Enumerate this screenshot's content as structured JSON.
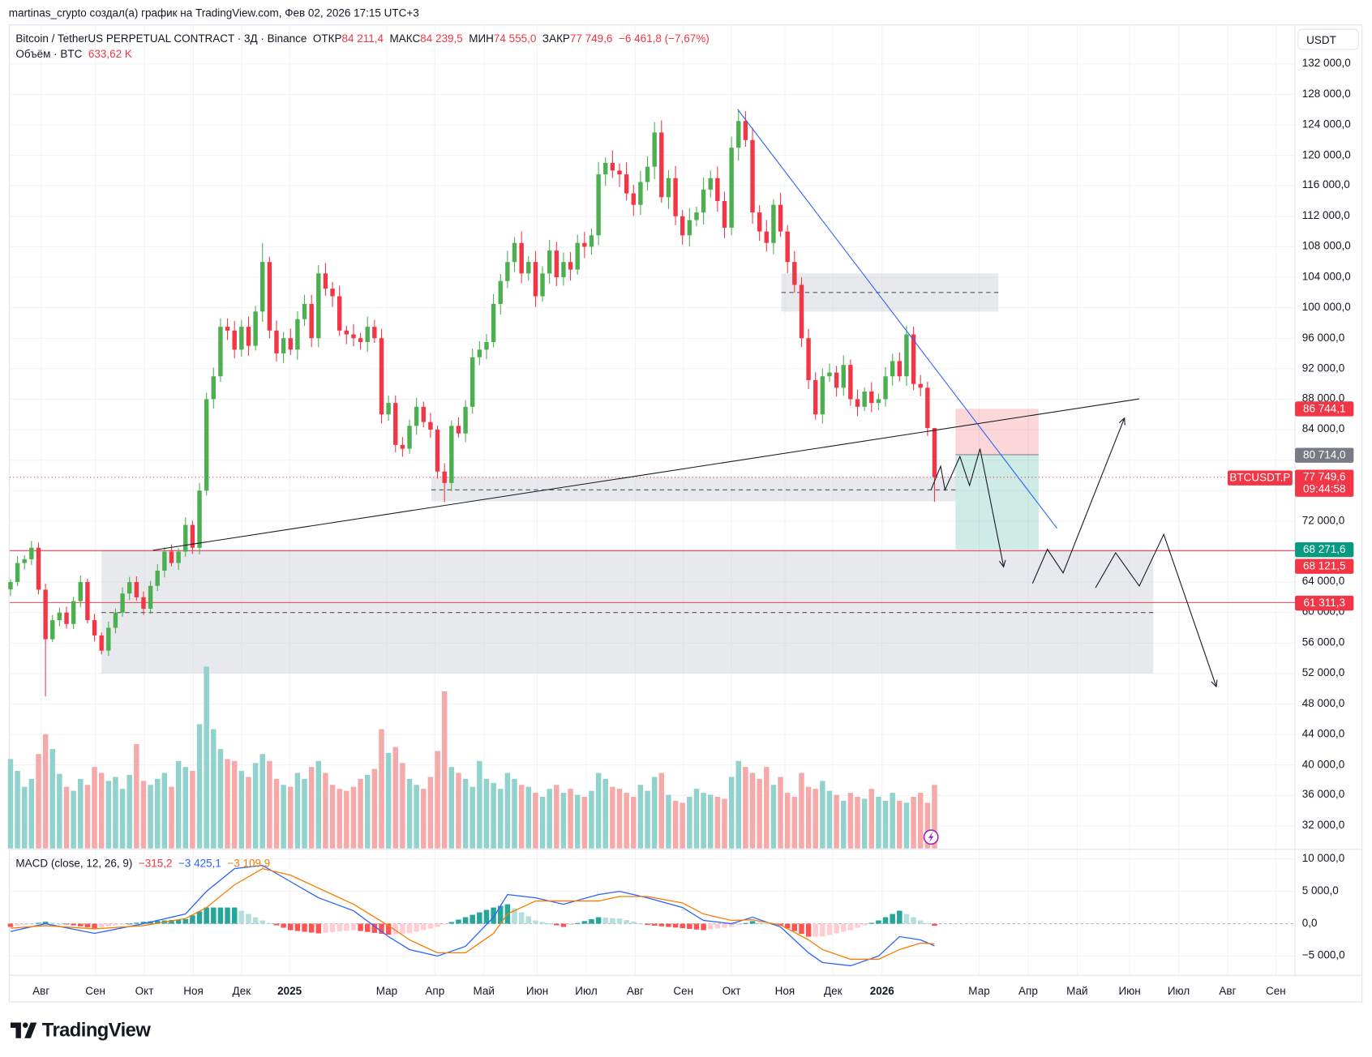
{
  "attribution": "martinas_crypto создал(а) график на TradingView.com, Фев 02, 2026 17:15 UTC+3",
  "legend": {
    "symbol": "Bitcoin / TetherUS PERPETUAL CONTRACT · 3Д · Binance",
    "open_label": "ОТКР",
    "open": "84 211,4",
    "high_label": "МАКС",
    "high": "84 239,5",
    "low_label": "МИН",
    "low": "74 555,0",
    "close_label": "ЗАКР",
    "close": "77 749,6",
    "change": "−6 461,8 (−7,67%)",
    "volume_label": "Объём · BTC",
    "volume": "633,62 K"
  },
  "currency_button": "USDT",
  "price_axis": [
    "132 000,0",
    "128 000,0",
    "124 000,0",
    "120 000,0",
    "116 000,0",
    "112 000,0",
    "108 000,0",
    "104 000,0",
    "100 000,0",
    "96 000,0",
    "92 000,0",
    "88 000,0",
    "84 000,0",
    "72 000,0",
    "64 000,0",
    "60 000,0",
    "56 000,0",
    "52 000,0",
    "48 000,0",
    "44 000,0",
    "40 000,0",
    "36 000,0",
    "32 000,0"
  ],
  "price_axis_values": [
    132000,
    128000,
    124000,
    120000,
    116000,
    112000,
    108000,
    104000,
    100000,
    96000,
    92000,
    88000,
    84000,
    72000,
    64000,
    60000,
    56000,
    52000,
    48000,
    44000,
    40000,
    36000,
    32000
  ],
  "flags": {
    "target": {
      "text": "86 744,1",
      "value": 86744.1,
      "color": "#f23645"
    },
    "entry": {
      "text": "80 714,0",
      "value": 80714.0,
      "color": "#787b86"
    },
    "last": {
      "text": "77 749,6",
      "value": 77749.6,
      "countdown": "09:44:58",
      "color": "#f23645"
    },
    "symbol": "BTCUSDT.P",
    "stop": {
      "text": "68 271,6",
      "value": 68271.6,
      "color": "#089981"
    },
    "level1": {
      "text": "68 121,5",
      "value": 68121.5,
      "color": "#f23645"
    },
    "level2": {
      "text": "61 311,3",
      "value": 61311.3,
      "color": "#f23645"
    }
  },
  "macd": {
    "label": "MACD (close, 12, 26, 9)",
    "hist_value": "−315,2",
    "macd_value": "−3 425,1",
    "signal_value": "−3 109,9",
    "axis": [
      "10 000,0",
      "5 000,0",
      "0,0",
      "−5 000,0"
    ],
    "axis_values": [
      10000,
      5000,
      0,
      -5000
    ]
  },
  "time_axis": [
    {
      "label": "Авг",
      "year": false
    },
    {
      "label": "Сен",
      "year": false
    },
    {
      "label": "Окт",
      "year": false
    },
    {
      "label": "Ноя",
      "year": false
    },
    {
      "label": "Дек",
      "year": false
    },
    {
      "label": "2025",
      "year": true
    },
    {
      "label": "Мар",
      "year": false
    },
    {
      "label": "Апр",
      "year": false
    },
    {
      "label": "Май",
      "year": false
    },
    {
      "label": "Июн",
      "year": false
    },
    {
      "label": "Июл",
      "year": false
    },
    {
      "label": "Авг",
      "year": false
    },
    {
      "label": "Сен",
      "year": false
    },
    {
      "label": "Окт",
      "year": false
    },
    {
      "label": "Ноя",
      "year": false
    },
    {
      "label": "Дек",
      "year": false
    },
    {
      "label": "2026",
      "year": true
    },
    {
      "label": "Мар",
      "year": false
    },
    {
      "label": "Апр",
      "year": false
    },
    {
      "label": "Май",
      "year": false
    },
    {
      "label": "Июн",
      "year": false
    },
    {
      "label": "Июл",
      "year": false
    },
    {
      "label": "Авг",
      "year": false
    },
    {
      "label": "Сен",
      "year": false
    }
  ],
  "logo": "TradingView",
  "colors": {
    "up": "#4caf50",
    "down": "#f23645",
    "vol_up": "#92d2cc",
    "vol_down": "#f6a9a9",
    "macd": "#2962ff",
    "signal": "#f57c00",
    "trend_blue": "#2962ff"
  },
  "chart_data": {
    "type": "candlestick",
    "title": "Bitcoin / TetherUS PERPETUAL CONTRACT · 3Д · Binance",
    "ylabel": "USDT",
    "ylim": [
      30000,
      134000
    ],
    "period": "3D, Jul 2024 – Feb 2026 (approx.)",
    "closes": [
      64000,
      66500,
      67000,
      68500,
      63000,
      56500,
      59000,
      60000,
      58500,
      61500,
      64000,
      59000,
      57000,
      55000,
      58000,
      60000,
      62500,
      64000,
      62000,
      60500,
      63500,
      65500,
      68000,
      66500,
      68000,
      71500,
      68500,
      76000,
      88000,
      91000,
      97500,
      97000,
      94500,
      97500,
      95000,
      99500,
      106000,
      97000,
      94000,
      96000,
      94500,
      98500,
      100500,
      96000,
      104500,
      102500,
      101500,
      97000,
      96500,
      96000,
      95500,
      97500,
      96000,
      86000,
      87500,
      82000,
      81500,
      84500,
      87000,
      85000,
      84000,
      78500,
      77000,
      84500,
      83500,
      87000,
      93500,
      94500,
      95500,
      100500,
      103500,
      106000,
      108500,
      104500,
      106000,
      101500,
      104500,
      107500,
      104000,
      106000,
      105000,
      108500,
      108000,
      109500,
      117500,
      119000,
      118000,
      117500,
      115000,
      113500,
      116500,
      118500,
      123000,
      114500,
      117000,
      112000,
      109500,
      111500,
      112500,
      115500,
      117000,
      114000,
      110500,
      121000,
      124500,
      122000,
      112500,
      110000,
      108500,
      113500,
      110000,
      106000,
      103000,
      96000,
      90500,
      86000,
      91000,
      91500,
      89500,
      92500,
      88000,
      87000,
      89000,
      87500,
      88000,
      91000,
      93000,
      91000,
      96500,
      90000,
      89500,
      84211.4,
      77749.6
    ],
    "last_candle": {
      "open": 84211.4,
      "high": 84239.5,
      "low": 74555.0,
      "close": 77749.6
    },
    "wick_extremes": [
      {
        "index": 5,
        "low": 49000
      },
      {
        "index": 62,
        "low": 74500
      },
      {
        "index": 104,
        "high": 126000
      },
      {
        "index": 36,
        "high": 108500
      }
    ],
    "volumes_k": [
      900,
      780,
      620,
      700,
      950,
      1150,
      1000,
      750,
      620,
      580,
      700,
      640,
      820,
      760,
      680,
      720,
      600,
      740,
      1050,
      680,
      640,
      700,
      760,
      620,
      880,
      820,
      780,
      1250,
      1830,
      1200,
      1000,
      900,
      880,
      780,
      720,
      860,
      950,
      880,
      700,
      640,
      620,
      760,
      700,
      820,
      880,
      760,
      640,
      600,
      580,
      620,
      700,
      740,
      800,
      1200,
      960,
      1020,
      860,
      700,
      640,
      600,
      720,
      980,
      1580,
      820,
      760,
      700,
      620,
      880,
      700,
      660,
      600,
      760,
      700,
      640,
      620,
      560,
      520,
      600,
      640,
      560,
      600,
      540,
      520,
      580,
      760,
      700,
      620,
      600,
      560,
      520,
      640,
      580,
      720,
      760,
      540,
      480,
      460,
      520,
      600,
      560,
      540,
      520,
      500,
      720,
      880,
      820,
      760,
      700,
      820,
      640,
      720,
      560,
      520,
      760,
      620,
      600,
      680,
      580,
      540,
      480,
      560,
      520,
      500,
      600,
      520,
      480,
      560,
      480,
      460,
      520,
      560,
      460,
      640,
      660,
      633.62
    ],
    "macd_points_index": [
      0,
      5,
      12,
      19,
      25,
      28,
      32,
      36,
      40,
      44,
      49,
      54,
      57,
      61,
      65,
      69,
      71,
      75,
      79,
      84,
      87,
      91,
      96,
      99,
      103,
      106,
      110,
      114,
      116,
      120,
      124,
      127,
      130,
      132
    ],
    "macd_line": [
      -1200,
      0,
      -1500,
      0,
      1500,
      5000,
      8500,
      9000,
      6500,
      4000,
      2000,
      -2000,
      -4000,
      -5000,
      -3500,
      1000,
      4500,
      4000,
      3000,
      4500,
      5000,
      4000,
      2500,
      500,
      0,
      1000,
      -500,
      -4500,
      -6000,
      -6500,
      -5000,
      -2000,
      -2500,
      -3425.1
    ],
    "signal_line": [
      -700,
      -300,
      -800,
      -300,
      800,
      2500,
      6000,
      8500,
      7500,
      5500,
      3000,
      -300,
      -2500,
      -4500,
      -4500,
      -1500,
      1500,
      3500,
      3500,
      3500,
      4200,
      4200,
      3200,
      1500,
      500,
      600,
      -200,
      -2500,
      -4000,
      -5500,
      -5500,
      -4000,
      -3000,
      -3109.9
    ],
    "zones": [
      {
        "top": 104500,
        "bottom": 99500,
        "mid": 102000
      },
      {
        "top": 77800,
        "bottom": 74600,
        "mid": 76100
      },
      {
        "top": 68200,
        "bottom": 52000,
        "mid": 60000
      }
    ]
  }
}
